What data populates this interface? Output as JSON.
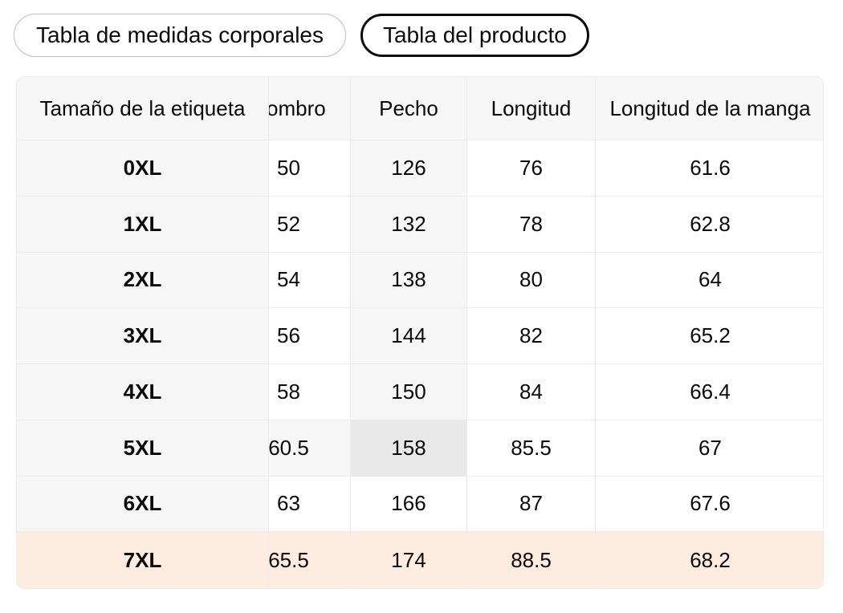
{
  "colors": {
    "stripe_gray": "#f6f6f6",
    "hover_intersection_gray": "#e9e9e9",
    "selected_row_peach": "#fdecdf",
    "cell_white": "#ffffff",
    "grid_border": "#ececec",
    "tab_border_unselected": "#bdbdbd",
    "tab_border_selected": "#0a0a0a",
    "text": "#0a0a0a"
  },
  "tabs": [
    {
      "label": "Tabla de medidas corporales",
      "selected": false
    },
    {
      "label": "Tabla del producto",
      "selected": true
    }
  ],
  "size_chart": {
    "columns": [
      "Tamaño de la etiqueta",
      "Hombro",
      "Pecho",
      "Longitud",
      "Longitud de la manga"
    ],
    "rows": [
      {
        "size": "0XL",
        "values": [
          "50",
          "126",
          "76",
          "61.6"
        ]
      },
      {
        "size": "1XL",
        "values": [
          "52",
          "132",
          "78",
          "62.8"
        ]
      },
      {
        "size": "2XL",
        "values": [
          "54",
          "138",
          "80",
          "64"
        ]
      },
      {
        "size": "3XL",
        "values": [
          "56",
          "144",
          "82",
          "65.2"
        ]
      },
      {
        "size": "4XL",
        "values": [
          "58",
          "150",
          "84",
          "66.4"
        ]
      },
      {
        "size": "5XL",
        "values": [
          "60.5",
          "158",
          "85.5",
          "67"
        ]
      },
      {
        "size": "6XL",
        "values": [
          "63",
          "166",
          "87",
          "67.6"
        ]
      },
      {
        "size": "7XL",
        "values": [
          "65.5",
          "174",
          "88.5",
          "68.2"
        ]
      }
    ],
    "selected_size": "7XL",
    "highlighted_cell": {
      "size": "5XL",
      "column": "Pecho",
      "value": "158"
    },
    "header_backgrounds": [
      "stripe",
      "stripe",
      "stripe",
      "stripe",
      "stripe"
    ],
    "cell_backgrounds": [
      [
        "stripe",
        "white",
        "stripe",
        "white",
        "white"
      ],
      [
        "stripe",
        "white",
        "stripe",
        "white",
        "white"
      ],
      [
        "stripe",
        "white",
        "stripe",
        "white",
        "white"
      ],
      [
        "stripe",
        "white",
        "stripe",
        "white",
        "white"
      ],
      [
        "stripe",
        "white",
        "stripe",
        "white",
        "white"
      ],
      [
        "stripe",
        "stripe",
        "hover",
        "white",
        "white"
      ],
      [
        "stripe",
        "white",
        "white",
        "white",
        "white"
      ],
      [
        "selected",
        "selected",
        "selected",
        "selected",
        "selected"
      ]
    ]
  }
}
